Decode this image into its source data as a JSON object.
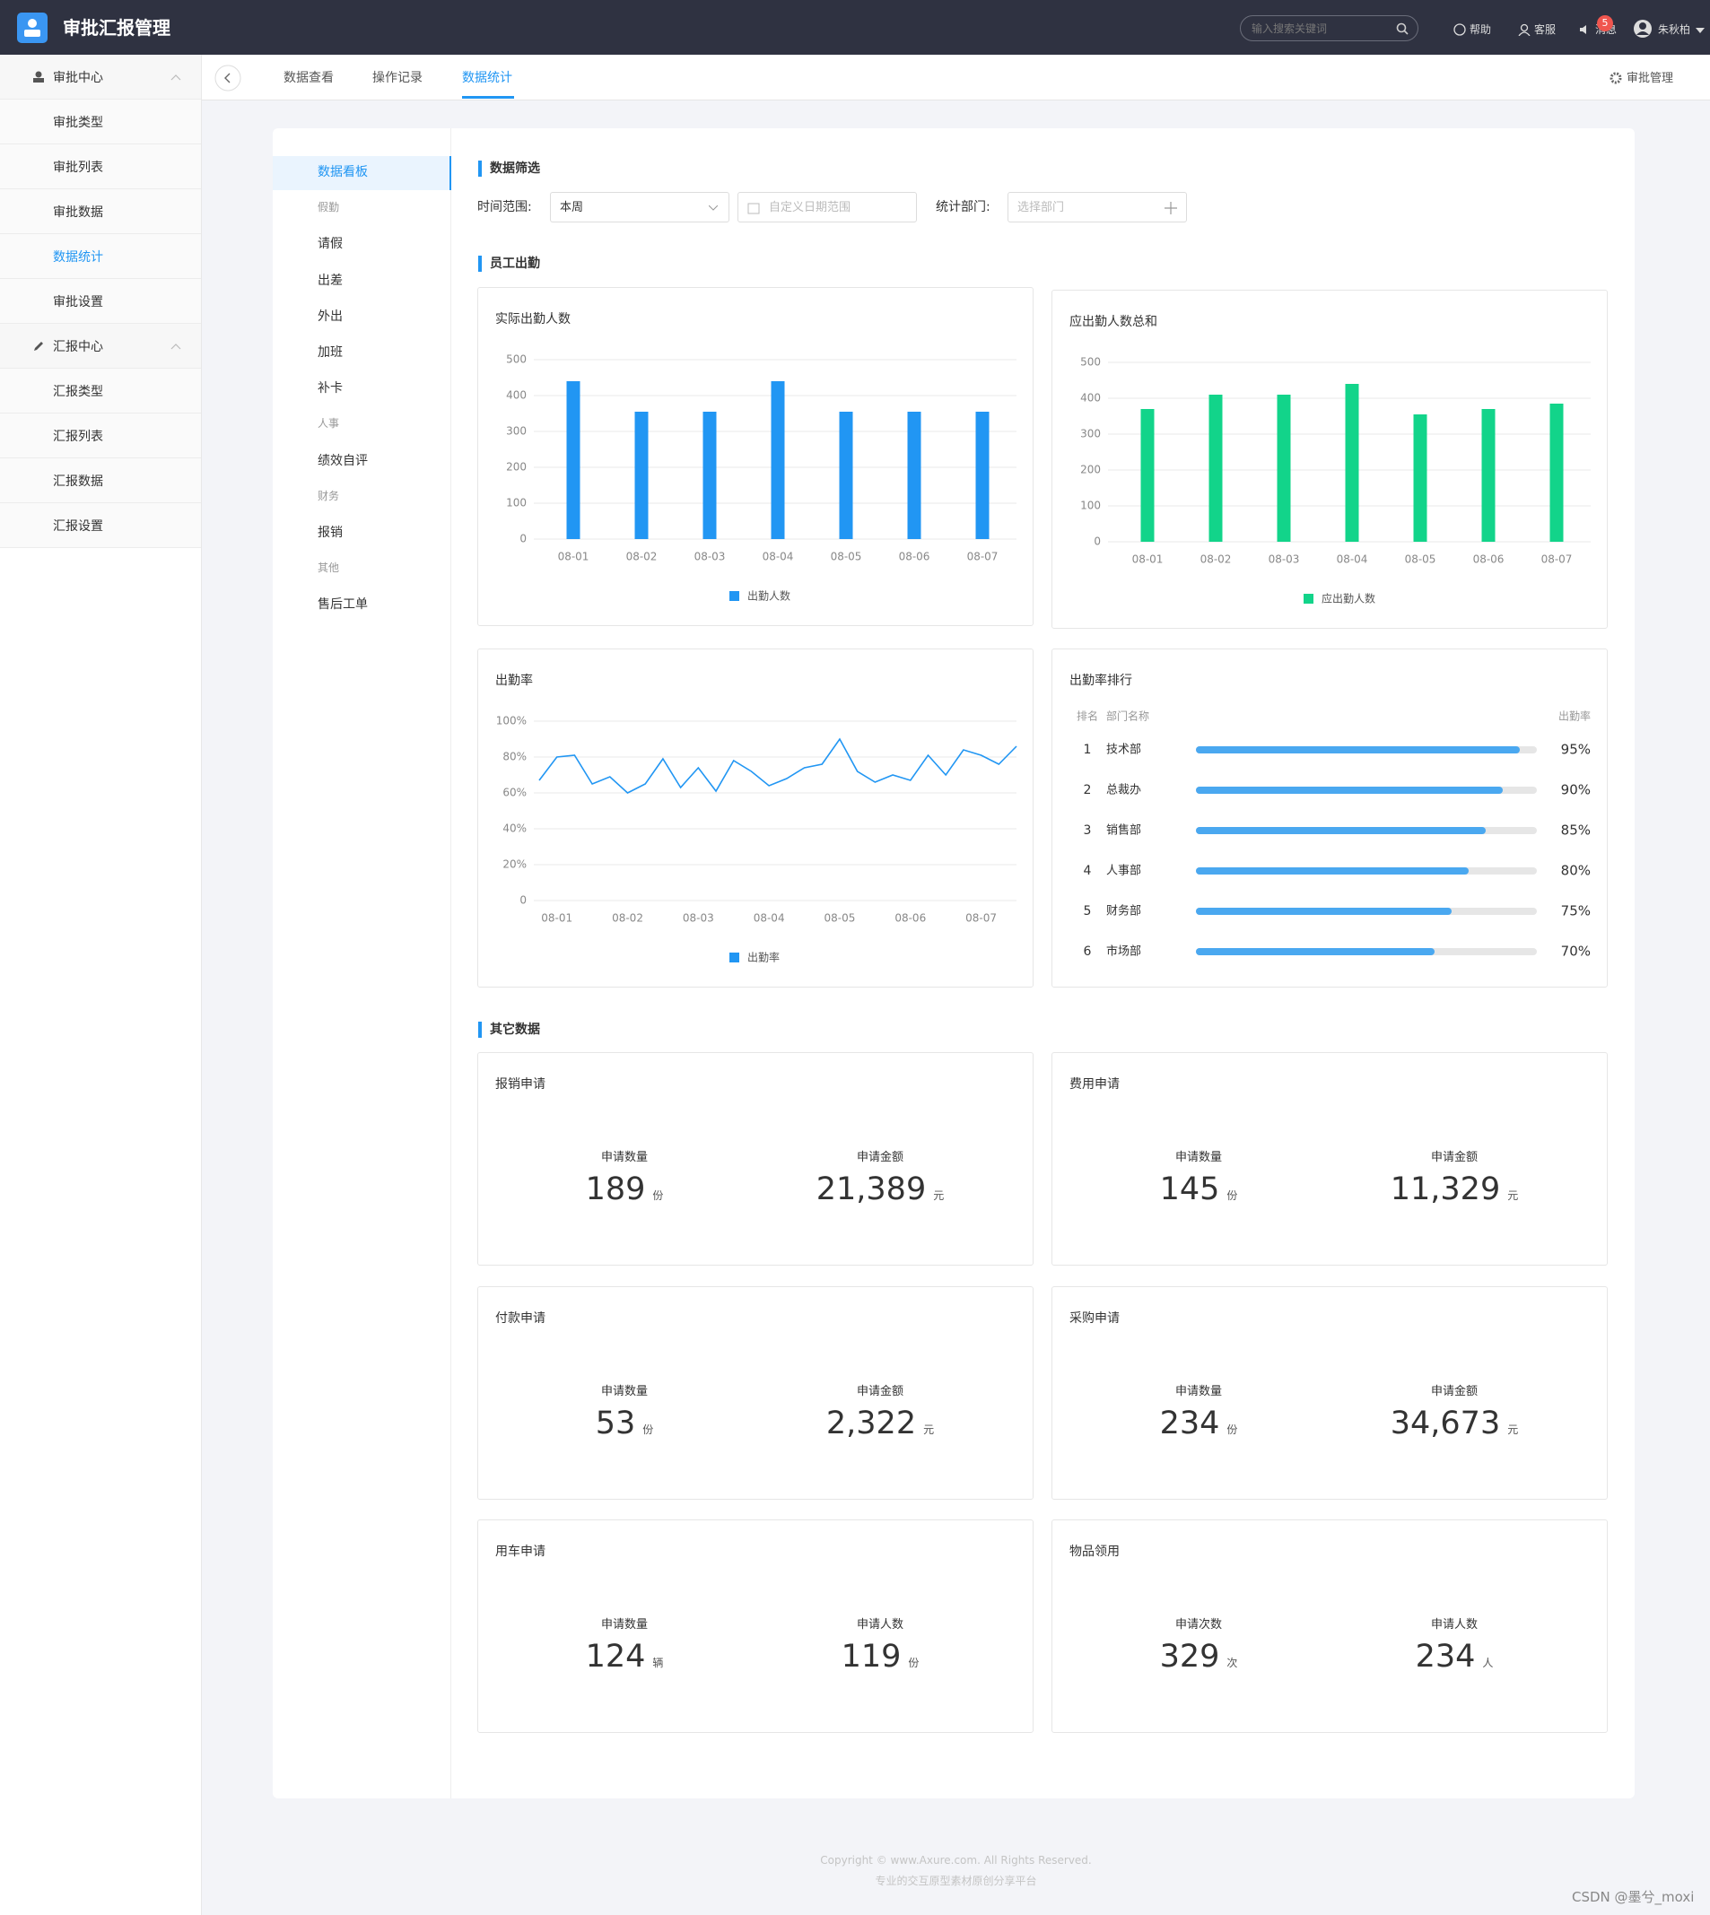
{
  "header": {
    "title": "审批汇报管理",
    "search_placeholder": "输入搜索关键词",
    "links": [
      "帮助",
      "客服",
      "消息"
    ],
    "badge": "5",
    "user": "朱秋柏"
  },
  "sidebar": [
    {
      "label": "审批中心",
      "items": [
        "审批类型",
        "审批列表",
        "审批数据",
        "数据统计",
        "审批设置"
      ]
    },
    {
      "label": "汇报中心",
      "items": [
        "汇报类型",
        "汇报列表",
        "汇报数据",
        "汇报设置"
      ]
    }
  ],
  "tabs": [
    "数据查看",
    "操作记录",
    "数据统计"
  ],
  "tabs_right": "审批管理",
  "subnav": [
    "数据看板",
    "假勤",
    "请假",
    "出差",
    "外出",
    "加班",
    "补卡",
    "人事",
    "绩效自评",
    "财务",
    "报销",
    "其他",
    "售后工单"
  ],
  "filter": {
    "title": "数据筛选",
    "time_label": "时间范围:",
    "time_value": "本周",
    "date_placeholder": "自定义日期范围",
    "dept_label": "统计部门:",
    "dept_placeholder": "选择部门"
  },
  "attendance_title": "员工出勤",
  "chart_data": [
    {
      "type": "bar",
      "title": "实际出勤人数",
      "categories": [
        "08-01",
        "08-02",
        "08-03",
        "08-04",
        "08-05",
        "08-06",
        "08-07"
      ],
      "series": [
        {
          "name": "出勤人数",
          "color": "#2196f3",
          "values": [
            440,
            355,
            355,
            440,
            355,
            355,
            355
          ]
        }
      ],
      "ylim": [
        0,
        500
      ],
      "yticks": [
        0,
        100,
        200,
        300,
        400,
        500
      ],
      "grid": true,
      "legend": "bottom"
    },
    {
      "type": "bar",
      "title": "应出勤人数总和",
      "categories": [
        "08-01",
        "08-02",
        "08-03",
        "08-04",
        "08-05",
        "08-06",
        "08-07"
      ],
      "series": [
        {
          "name": "应出勤人数",
          "color": "#12d48a",
          "values": [
            370,
            410,
            410,
            440,
            355,
            370,
            385
          ]
        }
      ],
      "ylim": [
        0,
        500
      ],
      "yticks": [
        0,
        100,
        200,
        300,
        400,
        500
      ],
      "grid": true,
      "legend": "bottom"
    },
    {
      "type": "line",
      "title": "出勤率",
      "categories": [
        null,
        "08-01",
        null,
        null,
        null,
        "08-02",
        null,
        null,
        null,
        "08-03",
        null,
        null,
        null,
        "08-04",
        null,
        null,
        null,
        "08-05",
        null,
        null,
        null,
        "08-06",
        null,
        null,
        null,
        "08-07",
        null,
        null
      ],
      "series": [
        {
          "name": "出勤率",
          "color": "#2196f3",
          "values": [
            67,
            80,
            81,
            65,
            69,
            60,
            65,
            79,
            63,
            74,
            61,
            78,
            72,
            64,
            68,
            74,
            76,
            90,
            72,
            66,
            70,
            67,
            81,
            70,
            84,
            81,
            76,
            86
          ]
        }
      ],
      "ylim": [
        0,
        100
      ],
      "yticks": [
        0,
        {
          "value": 20,
          "label": "20%"
        },
        {
          "value": 40,
          "label": "40%"
        },
        {
          "value": 60,
          "label": "60%"
        },
        {
          "value": 80,
          "label": "80%"
        },
        {
          "value": 100,
          "label": "100%"
        }
      ],
      "grid": true,
      "legend": "bottom"
    },
    {
      "type": "ranking",
      "title": "出勤率排行",
      "columns": [
        "排名",
        "部门名称",
        "出勤率"
      ],
      "ranks": [
        1,
        2,
        3,
        4,
        5,
        6
      ],
      "categories": [
        "技术部",
        "总裁办",
        "销售部",
        "人事部",
        "财务部",
        "市场部"
      ],
      "values": [
        95,
        90,
        85,
        80,
        75,
        70
      ],
      "value_labels": [
        "95%",
        "90%",
        "85%",
        "80%",
        "75%",
        "70%"
      ],
      "xlim": [
        0,
        100
      ],
      "color": "#4aa8f0"
    }
  ],
  "other": {
    "title": "其它数据",
    "cards": [
      {
        "title": "报销申请",
        "stats": [
          {
            "label": "申请数量",
            "value": "189",
            "unit": "份"
          },
          {
            "label": "申请金额",
            "value": "21,389",
            "unit": "元"
          }
        ]
      },
      {
        "title": "费用申请",
        "stats": [
          {
            "label": "申请数量",
            "value": "145",
            "unit": "份"
          },
          {
            "label": "申请金额",
            "value": "11,329",
            "unit": "元"
          }
        ]
      },
      {
        "title": "付款申请",
        "stats": [
          {
            "label": "申请数量",
            "value": "53",
            "unit": "份"
          },
          {
            "label": "申请金额",
            "value": "2,322",
            "unit": "元"
          }
        ]
      },
      {
        "title": "采购申请",
        "stats": [
          {
            "label": "申请数量",
            "value": "234",
            "unit": "份"
          },
          {
            "label": "申请金额",
            "value": "34,673",
            "unit": "元"
          }
        ]
      },
      {
        "title": "用车申请",
        "stats": [
          {
            "label": "申请数量",
            "value": "124",
            "unit": "辆"
          },
          {
            "label": "申请人数",
            "value": "119",
            "unit": "份"
          }
        ]
      },
      {
        "title": "物品领用",
        "stats": [
          {
            "label": "申请次数",
            "value": "329",
            "unit": "次"
          },
          {
            "label": "申请人数",
            "value": "234",
            "unit": "人"
          }
        ]
      }
    ]
  },
  "footer": [
    "Copyright © www.Axure.com. All Rights Reserved.",
    "专业的交互原型素材原创分享平台"
  ],
  "watermark": "CSDN @墨兮_moxi"
}
